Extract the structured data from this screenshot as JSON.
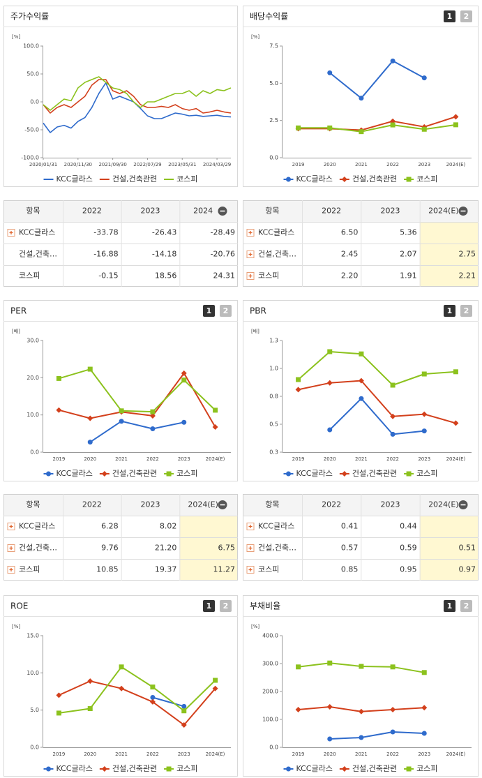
{
  "tab_labels": [
    "1",
    "2"
  ],
  "chart_data": [
    {
      "type": "line",
      "title": "주가수익률",
      "y_unit": "[%]",
      "tabs": false,
      "markers": false,
      "x": [
        0,
        2,
        4,
        6,
        8,
        10,
        12,
        14,
        16,
        18,
        20,
        22,
        24,
        26,
        28,
        30,
        32,
        34,
        36,
        38,
        40,
        42,
        44,
        46,
        48,
        50,
        52,
        54
      ],
      "xlim": [
        0,
        54
      ],
      "xticks": [
        {
          "value": 0,
          "label": "2020/01/31"
        },
        {
          "value": 10,
          "label": "2020/11/30"
        },
        {
          "value": 20,
          "label": "2021/09/30"
        },
        {
          "value": 30,
          "label": "2022/07/29"
        },
        {
          "value": 40,
          "label": "2023/05/31"
        },
        {
          "value": 50,
          "label": "2024/03/29"
        }
      ],
      "ylim": [
        -100,
        100
      ],
      "yticks": [
        {
          "value": -100,
          "label": "-100.0"
        },
        {
          "value": -50,
          "label": "-50.0"
        },
        {
          "value": 0,
          "label": "0.0"
        },
        {
          "value": 50,
          "label": "50.0"
        },
        {
          "value": 100,
          "label": "100.0"
        }
      ],
      "series": [
        {
          "name": "KCC글라스",
          "color": "#2f6bcc",
          "values": [
            -38,
            -55,
            -45,
            -42,
            -47,
            -35,
            -28,
            -10,
            15,
            34,
            5,
            10,
            5,
            0,
            -12,
            -25,
            -30,
            -30,
            -25,
            -20,
            -22,
            -25,
            -24,
            -26,
            -25,
            -24,
            -26,
            -27
          ]
        },
        {
          "name": "건설,건축관련",
          "color": "#d3401c",
          "values": [
            -5,
            -20,
            -10,
            -5,
            -10,
            0,
            10,
            30,
            40,
            40,
            20,
            15,
            20,
            10,
            -5,
            -10,
            -10,
            -8,
            -10,
            -5,
            -12,
            -15,
            -12,
            -20,
            -18,
            -15,
            -18,
            -20
          ]
        },
        {
          "name": "코스피",
          "color": "#8cc21e",
          "values": [
            -5,
            -15,
            -5,
            5,
            2,
            25,
            35,
            40,
            45,
            35,
            25,
            22,
            15,
            0,
            -10,
            0,
            0,
            5,
            10,
            15,
            15,
            20,
            10,
            20,
            15,
            22,
            20,
            25
          ]
        }
      ]
    },
    {
      "type": "line",
      "title": "배당수익률",
      "y_unit": "[%]",
      "tabs": true,
      "markers": true,
      "categories": [
        "2019",
        "2020",
        "2021",
        "2022",
        "2023",
        "2024(E)"
      ],
      "ylim": [
        0,
        7.5
      ],
      "yticks": [
        {
          "value": 0,
          "label": "0.0"
        },
        {
          "value": 2.5,
          "label": "2.5"
        },
        {
          "value": 5,
          "label": "5.0"
        },
        {
          "value": 7.5,
          "label": "7.5"
        }
      ],
      "series": [
        {
          "name": "KCC글라스",
          "color": "#2f6bcc",
          "marker": "circle",
          "values": [
            null,
            5.7,
            4.0,
            6.5,
            5.36,
            null
          ]
        },
        {
          "name": "건설,건축관련",
          "color": "#d3401c",
          "marker": "diamond",
          "values": [
            1.95,
            1.95,
            1.85,
            2.45,
            2.07,
            2.75
          ]
        },
        {
          "name": "코스피",
          "color": "#8cc21e",
          "marker": "square",
          "values": [
            2.0,
            2.0,
            1.75,
            2.2,
            1.91,
            2.21
          ]
        }
      ]
    },
    {
      "type": "line",
      "title": "PER",
      "y_unit": "[배]",
      "tabs": true,
      "markers": true,
      "categories": [
        "2019",
        "2020",
        "2021",
        "2022",
        "2023",
        "2024(E)"
      ],
      "ylim": [
        0,
        30
      ],
      "yticks": [
        {
          "value": 0,
          "label": "0.0"
        },
        {
          "value": 10,
          "label": "10.0"
        },
        {
          "value": 20,
          "label": "20.0"
        },
        {
          "value": 30,
          "label": "30.0"
        }
      ],
      "series": [
        {
          "name": "KCC글라스",
          "color": "#2f6bcc",
          "marker": "circle",
          "values": [
            null,
            2.7,
            8.3,
            6.28,
            8.02,
            null
          ]
        },
        {
          "name": "건설,건축관련",
          "color": "#d3401c",
          "marker": "diamond",
          "values": [
            11.3,
            9.1,
            10.8,
            9.76,
            21.2,
            6.75
          ]
        },
        {
          "name": "코스피",
          "color": "#8cc21e",
          "marker": "square",
          "values": [
            19.8,
            22.3,
            11.1,
            10.85,
            19.37,
            11.27
          ]
        }
      ]
    },
    {
      "type": "line",
      "title": "PBR",
      "y_unit": "[배]",
      "tabs": true,
      "markers": true,
      "categories": [
        "2019",
        "2020",
        "2021",
        "2022",
        "2023",
        "2024(E)"
      ],
      "ylim": [
        0.25,
        1.25
      ],
      "yticks": [
        {
          "value": 0.25,
          "label": "0.3"
        },
        {
          "value": 0.5,
          "label": "0.5"
        },
        {
          "value": 0.75,
          "label": "0.8"
        },
        {
          "value": 1.0,
          "label": "1.0"
        },
        {
          "value": 1.25,
          "label": "1.3"
        }
      ],
      "series": [
        {
          "name": "KCC글라스",
          "color": "#2f6bcc",
          "marker": "circle",
          "values": [
            null,
            0.45,
            0.73,
            0.41,
            0.44,
            null
          ]
        },
        {
          "name": "건설,건축관련",
          "color": "#d3401c",
          "marker": "diamond",
          "values": [
            0.81,
            0.87,
            0.89,
            0.57,
            0.59,
            0.51
          ]
        },
        {
          "name": "코스피",
          "color": "#8cc21e",
          "marker": "square",
          "values": [
            0.9,
            1.15,
            1.13,
            0.85,
            0.95,
            0.97
          ]
        }
      ]
    },
    {
      "type": "line",
      "title": "ROE",
      "y_unit": "[%]",
      "tabs": true,
      "markers": true,
      "categories": [
        "2019",
        "2020",
        "2021",
        "2022",
        "2023",
        "2024(E)"
      ],
      "ylim": [
        0,
        15
      ],
      "yticks": [
        {
          "value": 0,
          "label": "0.0"
        },
        {
          "value": 5,
          "label": "5.0"
        },
        {
          "value": 10,
          "label": "10.0"
        },
        {
          "value": 15,
          "label": "15.0"
        }
      ],
      "series": [
        {
          "name": "KCC글라스",
          "color": "#2f6bcc",
          "marker": "circle",
          "values": [
            null,
            null,
            null,
            6.7,
            5.5,
            null
          ]
        },
        {
          "name": "건설,건축관련",
          "color": "#d3401c",
          "marker": "diamond",
          "values": [
            7.0,
            8.9,
            7.9,
            6.1,
            3.0,
            7.9
          ]
        },
        {
          "name": "코스피",
          "color": "#8cc21e",
          "marker": "square",
          "values": [
            4.6,
            5.2,
            10.8,
            8.1,
            4.9,
            9.0
          ]
        }
      ]
    },
    {
      "type": "line",
      "title": "부채비율",
      "y_unit": "[%]",
      "tabs": true,
      "markers": true,
      "categories": [
        "2019",
        "2020",
        "2021",
        "2022",
        "2023",
        "2024(E)"
      ],
      "ylim": [
        0,
        400
      ],
      "yticks": [
        {
          "value": 0,
          "label": "0.0"
        },
        {
          "value": 100,
          "label": "100.0"
        },
        {
          "value": 200,
          "label": "200.0"
        },
        {
          "value": 300,
          "label": "300.0"
        },
        {
          "value": 400,
          "label": "400.0"
        }
      ],
      "series": [
        {
          "name": "KCC글라스",
          "color": "#2f6bcc",
          "marker": "circle",
          "values": [
            null,
            30,
            35,
            55,
            50,
            null
          ]
        },
        {
          "name": "건설,건축관련",
          "color": "#d3401c",
          "marker": "diamond",
          "values": [
            135,
            145,
            128,
            135,
            142,
            null
          ]
        },
        {
          "name": "코스피",
          "color": "#8cc21e",
          "marker": "square",
          "values": [
            288,
            302,
            290,
            288,
            268,
            null
          ]
        }
      ]
    }
  ],
  "tables": [
    {
      "columns": [
        "항목",
        "2022",
        "2023",
        "2024"
      ],
      "highlight_last": false,
      "rows": [
        {
          "name": "KCC글라스",
          "expand": true,
          "values": [
            "-33.78",
            "-26.43",
            "-28.49"
          ]
        },
        {
          "name": "건설,건축…",
          "expand": false,
          "values": [
            "-16.88",
            "-14.18",
            "-20.76"
          ]
        },
        {
          "name": "코스피",
          "expand": false,
          "values": [
            "-0.15",
            "18.56",
            "24.31"
          ]
        }
      ]
    },
    {
      "columns": [
        "항목",
        "2022",
        "2023",
        "2024(E)"
      ],
      "highlight_last": true,
      "rows": [
        {
          "name": "KCC글라스",
          "expand": true,
          "values": [
            "6.50",
            "5.36",
            null
          ]
        },
        {
          "name": "건설,건축…",
          "expand": true,
          "values": [
            "2.45",
            "2.07",
            "2.75"
          ]
        },
        {
          "name": "코스피",
          "expand": true,
          "values": [
            "2.20",
            "1.91",
            "2.21"
          ]
        }
      ]
    },
    {
      "columns": [
        "항목",
        "2022",
        "2023",
        "2024(E)"
      ],
      "highlight_last": true,
      "rows": [
        {
          "name": "KCC글라스",
          "expand": true,
          "values": [
            "6.28",
            "8.02",
            null
          ]
        },
        {
          "name": "건설,건축…",
          "expand": true,
          "values": [
            "9.76",
            "21.20",
            "6.75"
          ]
        },
        {
          "name": "코스피",
          "expand": true,
          "values": [
            "10.85",
            "19.37",
            "11.27"
          ]
        }
      ]
    },
    {
      "columns": [
        "항목",
        "2022",
        "2023",
        "2024(E)"
      ],
      "highlight_last": true,
      "rows": [
        {
          "name": "KCC글라스",
          "expand": true,
          "values": [
            "0.41",
            "0.44",
            null
          ]
        },
        {
          "name": "건설,건축…",
          "expand": true,
          "values": [
            "0.57",
            "0.59",
            "0.51"
          ]
        },
        {
          "name": "코스피",
          "expand": true,
          "values": [
            "0.85",
            "0.95",
            "0.97"
          ]
        }
      ]
    }
  ]
}
